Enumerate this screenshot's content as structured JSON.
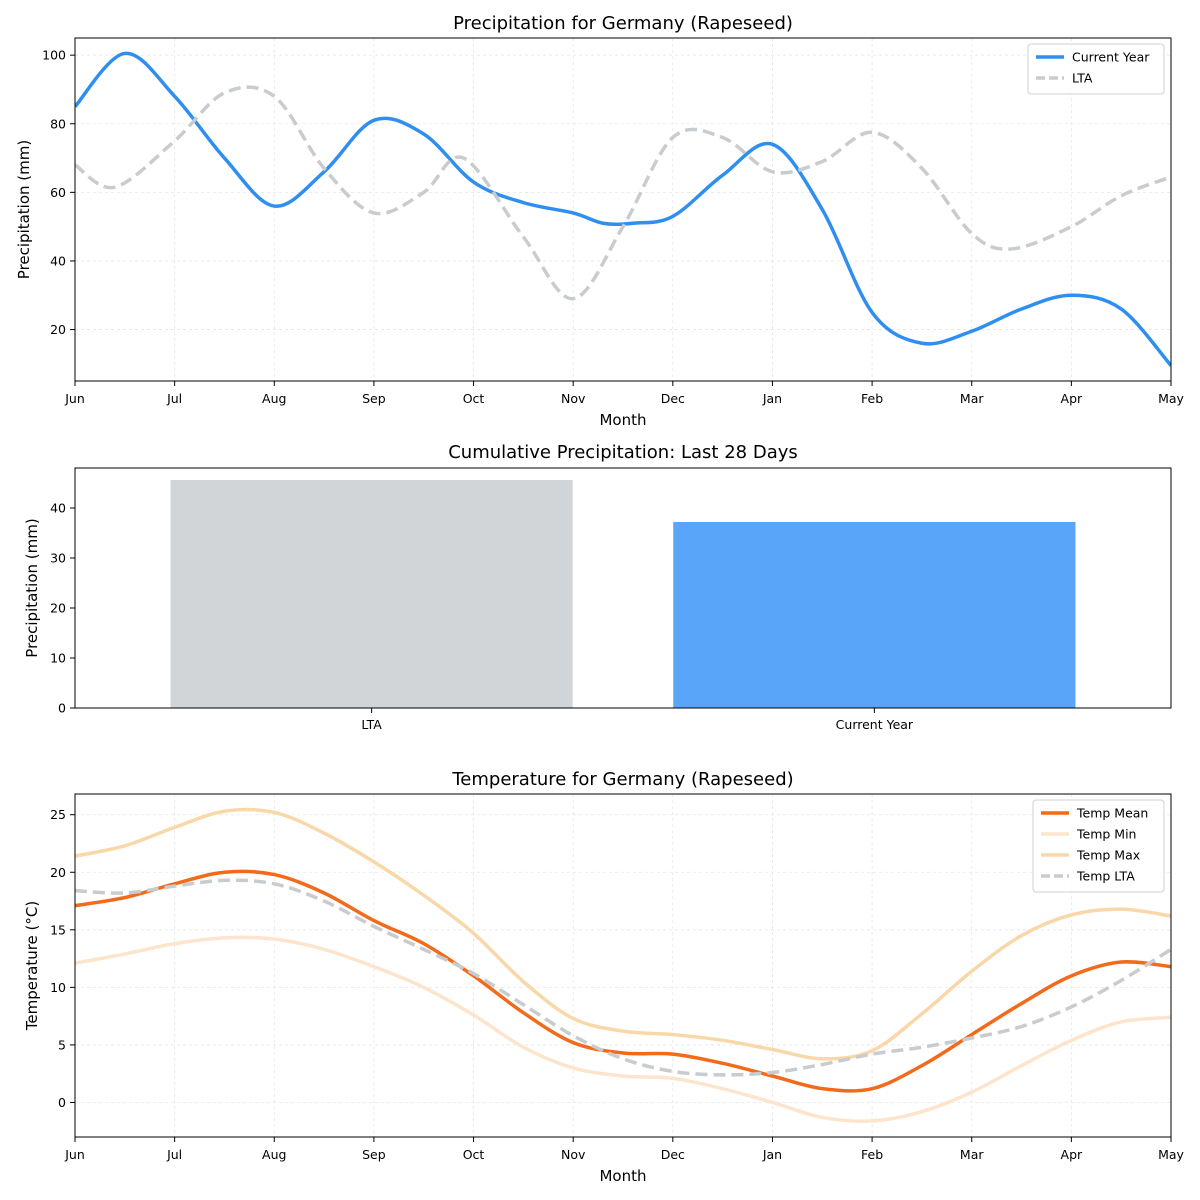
{
  "chart_data": [
    {
      "type": "line",
      "title": "Precipitation for Germany (Rapeseed)",
      "xlabel": "Month",
      "ylabel": "Precipitation (mm)",
      "categories": [
        "Jun",
        "Jul",
        "Aug",
        "Sep",
        "Oct",
        "Nov",
        "Dec",
        "Jan",
        "Feb",
        "Mar",
        "Apr",
        "May"
      ],
      "ylim": [
        5,
        105
      ],
      "yticks": [
        20,
        40,
        60,
        80,
        100
      ],
      "grid": true,
      "legend": "top-right",
      "series": [
        {
          "name": "Current Year",
          "color": "#2f8ff0",
          "style": "solid",
          "x": [
            0,
            0.5,
            1,
            1.5,
            2,
            2.5,
            3,
            3.5,
            4,
            4.5,
            5,
            5.3,
            5.6,
            6,
            6.5,
            7,
            7.5,
            8,
            8.5,
            9,
            9.5,
            10,
            10.5,
            11
          ],
          "y": [
            85,
            100.5,
            88,
            70,
            56,
            66,
            81,
            77,
            63,
            57,
            54,
            51,
            51,
            53,
            65,
            74,
            55,
            25,
            16,
            19.5,
            26,
            30,
            26,
            9.5
          ]
        },
        {
          "name": "LTA",
          "color": "#c8cccf",
          "style": "dashed",
          "x": [
            0,
            0.4,
            1,
            1.5,
            2,
            2.5,
            3,
            3.5,
            3.9,
            4.5,
            5,
            5.5,
            6,
            6.5,
            7,
            7.5,
            8,
            8.5,
            9,
            9.4,
            10,
            10.5,
            11
          ],
          "y": [
            68,
            61.5,
            75,
            89,
            88,
            67,
            54,
            60,
            70,
            47,
            29,
            50,
            76,
            76,
            66,
            69,
            77.5,
            67,
            48,
            43.5,
            50,
            59,
            64.5
          ]
        }
      ]
    },
    {
      "type": "bar",
      "title": "Cumulative Precipitation: Last 28 Days",
      "ylabel": "Precipitation (mm)",
      "categories": [
        "LTA",
        "Current Year"
      ],
      "values": [
        45.6,
        37.2
      ],
      "colors": [
        "#d1d5d8",
        "#59a5fa"
      ],
      "ylim": [
        0,
        48
      ],
      "yticks": [
        0,
        10,
        20,
        30,
        40
      ]
    },
    {
      "type": "line",
      "title": "Temperature for Germany (Rapeseed)",
      "xlabel": "Month",
      "ylabel": "Temperature (°C)",
      "categories": [
        "Jun",
        "Jul",
        "Aug",
        "Sep",
        "Oct",
        "Nov",
        "Dec",
        "Jan",
        "Feb",
        "Mar",
        "Apr",
        "May"
      ],
      "ylim": [
        -3,
        26.8
      ],
      "yticks": [
        0,
        5,
        10,
        15,
        20,
        25
      ],
      "grid": true,
      "legend": "top-right",
      "series": [
        {
          "name": "Temp Mean",
          "color": "#f26a1b",
          "style": "solid",
          "x": [
            0,
            0.5,
            1,
            1.5,
            2,
            2.5,
            3,
            3.5,
            4,
            4.5,
            5,
            5.5,
            6,
            6.5,
            7,
            7.5,
            8,
            8.5,
            9,
            9.5,
            10,
            10.5,
            11
          ],
          "y": [
            17.1,
            17.8,
            19,
            20,
            19.8,
            18.2,
            15.8,
            13.8,
            11,
            7.8,
            5.2,
            4.3,
            4.2,
            3.4,
            2.3,
            1.2,
            1.2,
            3.2,
            5.9,
            8.6,
            11,
            12.2,
            11.8
          ]
        },
        {
          "name": "Temp Min",
          "color": "#fde4cc",
          "style": "solid",
          "x": [
            0,
            0.5,
            1,
            1.5,
            2,
            2.5,
            3,
            3.5,
            4,
            4.5,
            5,
            5.5,
            6,
            6.5,
            7,
            7.5,
            8,
            8.5,
            9,
            9.5,
            10,
            10.5,
            11
          ],
          "y": [
            12.1,
            12.9,
            13.8,
            14.3,
            14.2,
            13.3,
            11.8,
            10,
            7.6,
            4.8,
            3,
            2.3,
            2.1,
            1.2,
            0,
            -1.3,
            -1.6,
            -0.8,
            0.9,
            3.2,
            5.4,
            7,
            7.4
          ]
        },
        {
          "name": "Temp Max",
          "color": "#f8d8a8",
          "style": "solid",
          "x": [
            0,
            0.5,
            1,
            1.5,
            2,
            2.5,
            3,
            3.5,
            4,
            4.5,
            5,
            5.5,
            6,
            6.5,
            7,
            7.5,
            8,
            8.5,
            9,
            9.5,
            10,
            10.5,
            11
          ],
          "y": [
            21.4,
            22.3,
            23.9,
            25.3,
            25.2,
            23.4,
            20.9,
            18,
            14.7,
            10.5,
            7.3,
            6.2,
            5.9,
            5.4,
            4.6,
            3.8,
            4.5,
            7.7,
            11.4,
            14.5,
            16.3,
            16.8,
            16.2
          ]
        },
        {
          "name": "Temp LTA",
          "color": "#c8cccf",
          "style": "dashed",
          "x": [
            0,
            0.5,
            1,
            1.5,
            2,
            2.5,
            3,
            3.5,
            4,
            4.5,
            5,
            5.5,
            6,
            6.5,
            7,
            7.5,
            8,
            8.5,
            9,
            9.5,
            10,
            10.5,
            11
          ],
          "y": [
            18.4,
            18.2,
            18.8,
            19.3,
            19,
            17.5,
            15.3,
            13.3,
            11.2,
            8.5,
            5.8,
            3.8,
            2.7,
            2.4,
            2.6,
            3.3,
            4.2,
            4.8,
            5.6,
            6.6,
            8.3,
            10.6,
            13.3
          ]
        }
      ]
    }
  ]
}
